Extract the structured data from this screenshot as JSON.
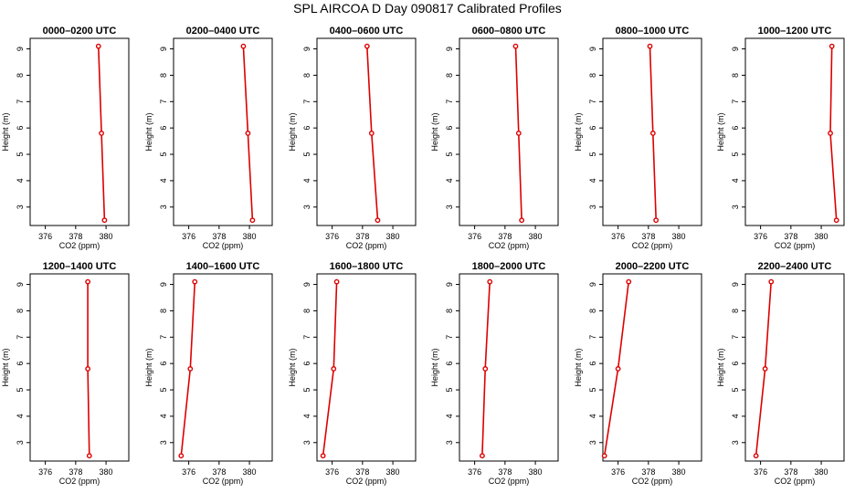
{
  "title": "SPL AIRCOA D  Day 090817  Calibrated Profiles",
  "colors": {
    "series": "#dd0000",
    "frame": "#000000",
    "background": "#ffffff"
  },
  "chart_data": [
    {
      "type": "line",
      "title": "0000–0200 UTC",
      "xlabel": "CO2 (ppm)",
      "ylabel": "Height (m)",
      "xlim": [
        375.0,
        381.5
      ],
      "ylim": [
        2.3,
        9.4
      ],
      "xticks": [
        376,
        378,
        380
      ],
      "yticks": [
        3,
        4,
        5,
        6,
        7,
        8,
        9
      ],
      "points": [
        {
          "x": 379.9,
          "y": 2.5
        },
        {
          "x": 379.7,
          "y": 5.8
        },
        {
          "x": 379.5,
          "y": 9.1
        }
      ]
    },
    {
      "type": "line",
      "title": "0200–0400 UTC",
      "xlabel": "CO2 (ppm)",
      "ylabel": "Height (m)",
      "xlim": [
        375.0,
        381.5
      ],
      "ylim": [
        2.3,
        9.4
      ],
      "xticks": [
        376,
        378,
        380
      ],
      "yticks": [
        3,
        4,
        5,
        6,
        7,
        8,
        9
      ],
      "points": [
        {
          "x": 380.2,
          "y": 2.5
        },
        {
          "x": 379.9,
          "y": 5.8
        },
        {
          "x": 379.6,
          "y": 9.1
        }
      ]
    },
    {
      "type": "line",
      "title": "0400–0600 UTC",
      "xlabel": "CO2 (ppm)",
      "ylabel": "Height (m)",
      "xlim": [
        375.0,
        381.5
      ],
      "ylim": [
        2.3,
        9.4
      ],
      "xticks": [
        376,
        378,
        380
      ],
      "yticks": [
        3,
        4,
        5,
        6,
        7,
        8,
        9
      ],
      "points": [
        {
          "x": 379.0,
          "y": 2.5
        },
        {
          "x": 378.6,
          "y": 5.8
        },
        {
          "x": 378.3,
          "y": 9.1
        }
      ]
    },
    {
      "type": "line",
      "title": "0600–0800 UTC",
      "xlabel": "CO2 (ppm)",
      "ylabel": "Height (m)",
      "xlim": [
        375.0,
        381.5
      ],
      "ylim": [
        2.3,
        9.4
      ],
      "xticks": [
        376,
        378,
        380
      ],
      "yticks": [
        3,
        4,
        5,
        6,
        7,
        8,
        9
      ],
      "points": [
        {
          "x": 379.1,
          "y": 2.5
        },
        {
          "x": 378.9,
          "y": 5.8
        },
        {
          "x": 378.7,
          "y": 9.1
        }
      ]
    },
    {
      "type": "line",
      "title": "0800–1000 UTC",
      "xlabel": "CO2 (ppm)",
      "ylabel": "Height (m)",
      "xlim": [
        375.0,
        381.5
      ],
      "ylim": [
        2.3,
        9.4
      ],
      "xticks": [
        376,
        378,
        380
      ],
      "yticks": [
        3,
        4,
        5,
        6,
        7,
        8,
        9
      ],
      "points": [
        {
          "x": 378.5,
          "y": 2.5
        },
        {
          "x": 378.3,
          "y": 5.8
        },
        {
          "x": 378.1,
          "y": 9.1
        }
      ]
    },
    {
      "type": "line",
      "title": "1000–1200 UTC",
      "xlabel": "CO2 (ppm)",
      "ylabel": "Height (m)",
      "xlim": [
        375.0,
        381.5
      ],
      "ylim": [
        2.3,
        9.4
      ],
      "xticks": [
        376,
        378,
        380
      ],
      "yticks": [
        3,
        4,
        5,
        6,
        7,
        8,
        9
      ],
      "points": [
        {
          "x": 381.0,
          "y": 2.5
        },
        {
          "x": 380.6,
          "y": 5.8
        },
        {
          "x": 380.7,
          "y": 9.1
        }
      ]
    },
    {
      "type": "line",
      "title": "1200–1400 UTC",
      "xlabel": "CO2 (ppm)",
      "ylabel": "Height (m)",
      "xlim": [
        375.0,
        381.5
      ],
      "ylim": [
        2.3,
        9.4
      ],
      "xticks": [
        376,
        378,
        380
      ],
      "yticks": [
        3,
        4,
        5,
        6,
        7,
        8,
        9
      ],
      "points": [
        {
          "x": 378.9,
          "y": 2.5
        },
        {
          "x": 378.8,
          "y": 5.8
        },
        {
          "x": 378.8,
          "y": 9.1
        }
      ]
    },
    {
      "type": "line",
      "title": "1400–1600 UTC",
      "xlabel": "CO2 (ppm)",
      "ylabel": "Height (m)",
      "xlim": [
        375.0,
        381.5
      ],
      "ylim": [
        2.3,
        9.4
      ],
      "xticks": [
        376,
        378,
        380
      ],
      "yticks": [
        3,
        4,
        5,
        6,
        7,
        8,
        9
      ],
      "points": [
        {
          "x": 375.5,
          "y": 2.5
        },
        {
          "x": 376.1,
          "y": 5.8
        },
        {
          "x": 376.4,
          "y": 9.1
        }
      ]
    },
    {
      "type": "line",
      "title": "1600–1800 UTC",
      "xlabel": "CO2 (ppm)",
      "ylabel": "Height (m)",
      "xlim": [
        375.0,
        381.5
      ],
      "ylim": [
        2.3,
        9.4
      ],
      "xticks": [
        376,
        378,
        380
      ],
      "yticks": [
        3,
        4,
        5,
        6,
        7,
        8,
        9
      ],
      "points": [
        {
          "x": 375.4,
          "y": 2.5
        },
        {
          "x": 376.1,
          "y": 5.8
        },
        {
          "x": 376.3,
          "y": 9.1
        }
      ]
    },
    {
      "type": "line",
      "title": "1800–2000 UTC",
      "xlabel": "CO2 (ppm)",
      "ylabel": "Height (m)",
      "xlim": [
        375.0,
        381.5
      ],
      "ylim": [
        2.3,
        9.4
      ],
      "xticks": [
        376,
        378,
        380
      ],
      "yticks": [
        3,
        4,
        5,
        6,
        7,
        8,
        9
      ],
      "points": [
        {
          "x": 376.5,
          "y": 2.5
        },
        {
          "x": 376.7,
          "y": 5.8
        },
        {
          "x": 377.0,
          "y": 9.1
        }
      ]
    },
    {
      "type": "line",
      "title": "2000–2200 UTC",
      "xlabel": "CO2 (ppm)",
      "ylabel": "Height (m)",
      "xlim": [
        375.0,
        381.5
      ],
      "ylim": [
        2.3,
        9.4
      ],
      "xticks": [
        376,
        378,
        380
      ],
      "yticks": [
        3,
        4,
        5,
        6,
        7,
        8,
        9
      ],
      "points": [
        {
          "x": 375.1,
          "y": 2.5
        },
        {
          "x": 376.0,
          "y": 5.8
        },
        {
          "x": 376.7,
          "y": 9.1
        }
      ]
    },
    {
      "type": "line",
      "title": "2200–2400 UTC",
      "xlabel": "CO2 (ppm)",
      "ylabel": "Height (m)",
      "xlim": [
        375.0,
        381.5
      ],
      "ylim": [
        2.3,
        9.4
      ],
      "xticks": [
        376,
        378,
        380
      ],
      "yticks": [
        3,
        4,
        5,
        6,
        7,
        8,
        9
      ],
      "points": [
        {
          "x": 375.7,
          "y": 2.5
        },
        {
          "x": 376.3,
          "y": 5.8
        },
        {
          "x": 376.7,
          "y": 9.1
        }
      ]
    }
  ]
}
